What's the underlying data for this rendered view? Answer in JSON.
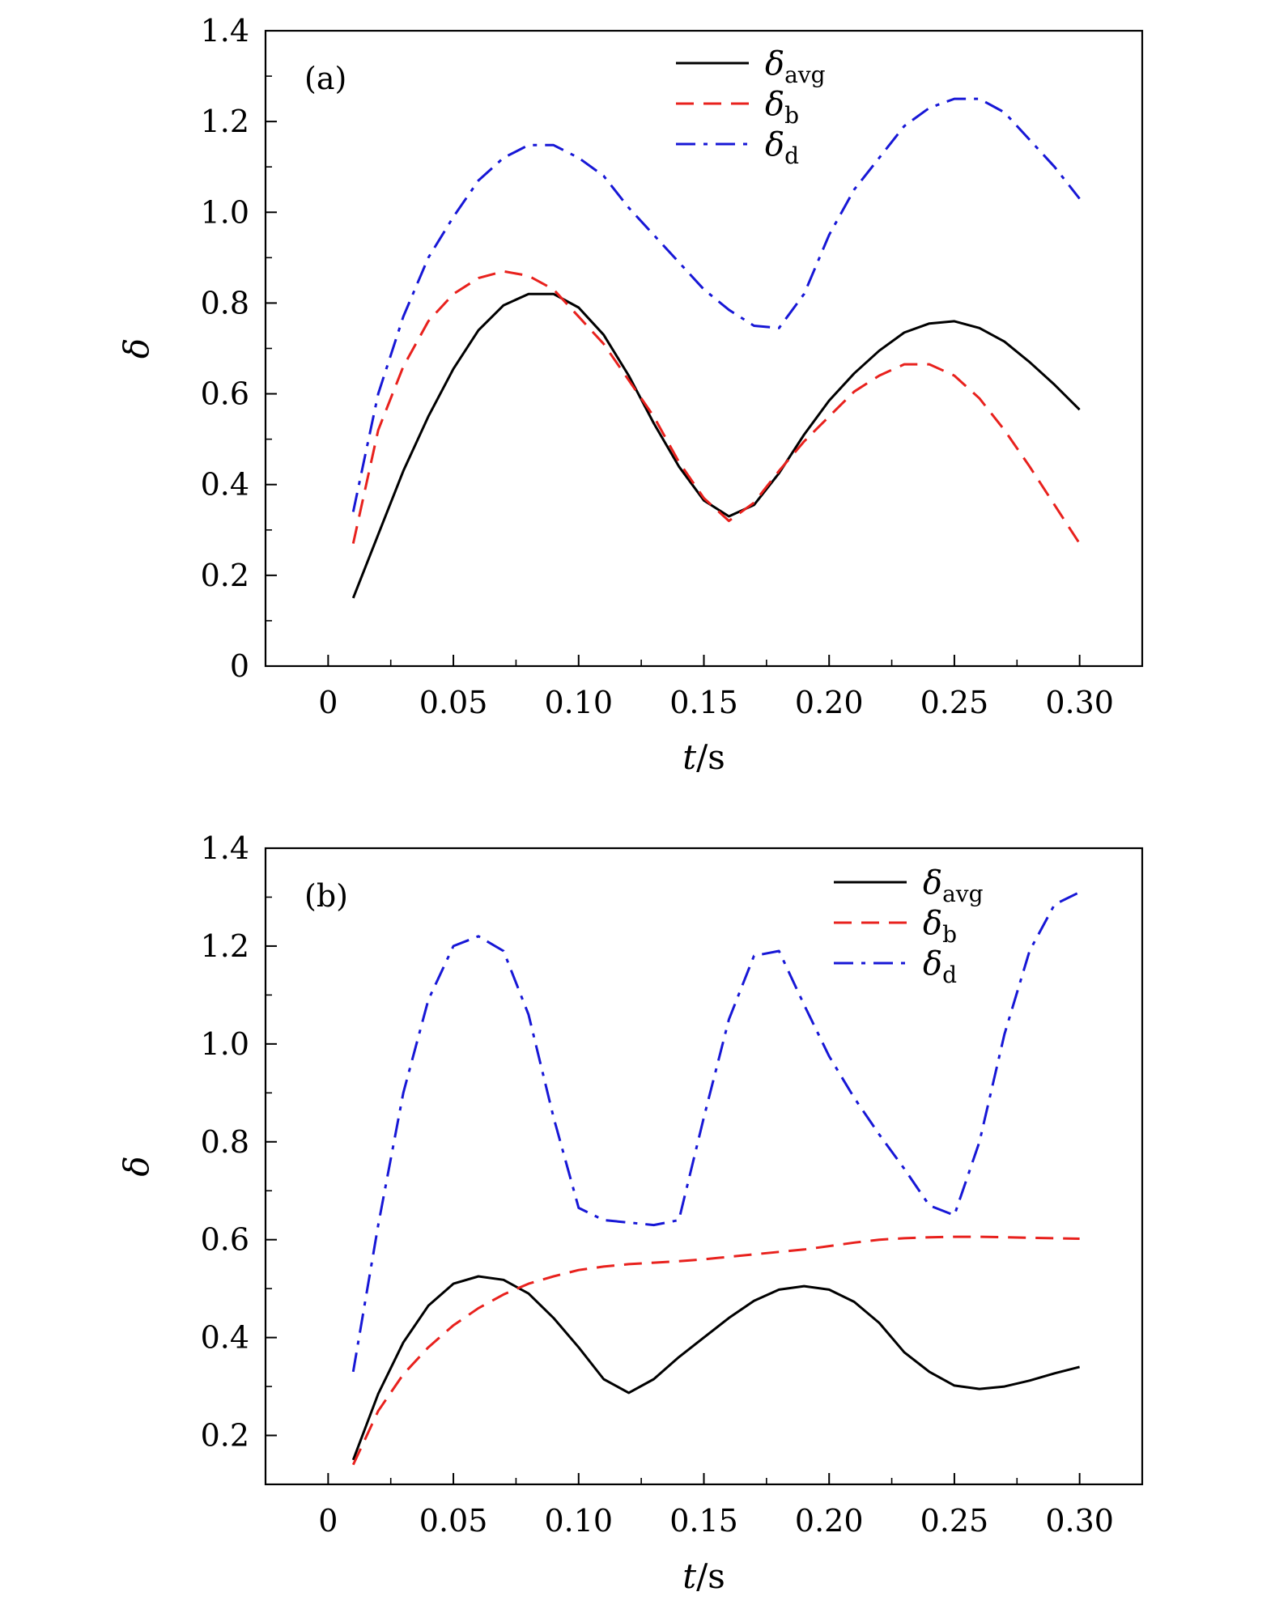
{
  "chart_data": [
    {
      "type": "line",
      "panel_label": "(a)",
      "xlabel": "t/s",
      "xlabel_italic": "t",
      "xlabel_rest": "/s",
      "ylabel": "δ",
      "xlim": [
        -0.025,
        0.325
      ],
      "ylim": [
        0,
        1.4
      ],
      "x_ticks": [
        0,
        0.05,
        0.1,
        0.15,
        0.2,
        0.25,
        0.3
      ],
      "x_tick_labels": [
        "0",
        "0.05",
        "0.10",
        "0.15",
        "0.20",
        "0.25",
        "0.30"
      ],
      "y_ticks": [
        0,
        0.2,
        0.4,
        0.6,
        0.8,
        1.0,
        1.2,
        1.4
      ],
      "y_tick_labels": [
        "0",
        "0.2",
        "0.4",
        "0.6",
        "0.8",
        "1.0",
        "1.2",
        "1.4"
      ],
      "legend_position": "top-center",
      "series": [
        {
          "name": "δavg",
          "name_main": "δ",
          "name_sub": "avg",
          "color": "#000000",
          "style": "solid",
          "x": [
            0.01,
            0.02,
            0.03,
            0.04,
            0.05,
            0.06,
            0.07,
            0.08,
            0.09,
            0.1,
            0.11,
            0.12,
            0.13,
            0.14,
            0.15,
            0.16,
            0.17,
            0.18,
            0.19,
            0.2,
            0.21,
            0.22,
            0.23,
            0.24,
            0.25,
            0.26,
            0.27,
            0.28,
            0.29,
            0.3
          ],
          "y": [
            0.15,
            0.29,
            0.43,
            0.55,
            0.655,
            0.74,
            0.795,
            0.82,
            0.82,
            0.79,
            0.73,
            0.64,
            0.535,
            0.44,
            0.365,
            0.33,
            0.355,
            0.425,
            0.51,
            0.585,
            0.645,
            0.695,
            0.735,
            0.755,
            0.76,
            0.745,
            0.715,
            0.67,
            0.62,
            0.565
          ]
        },
        {
          "name": "δb",
          "name_main": "δ",
          "name_sub": "b",
          "color": "#e8211d",
          "style": "dashed",
          "x": [
            0.01,
            0.02,
            0.03,
            0.04,
            0.05,
            0.06,
            0.07,
            0.08,
            0.09,
            0.1,
            0.11,
            0.12,
            0.13,
            0.14,
            0.15,
            0.16,
            0.17,
            0.18,
            0.19,
            0.2,
            0.21,
            0.22,
            0.23,
            0.24,
            0.25,
            0.26,
            0.27,
            0.28,
            0.29,
            0.3
          ],
          "y": [
            0.27,
            0.52,
            0.66,
            0.76,
            0.82,
            0.855,
            0.87,
            0.86,
            0.83,
            0.77,
            0.71,
            0.63,
            0.55,
            0.45,
            0.37,
            0.32,
            0.36,
            0.43,
            0.495,
            0.55,
            0.605,
            0.64,
            0.665,
            0.665,
            0.64,
            0.59,
            0.52,
            0.44,
            0.355,
            0.27
          ]
        },
        {
          "name": "δd",
          "name_main": "δ",
          "name_sub": "d",
          "color": "#1717d6",
          "style": "dashdot",
          "x": [
            0.01,
            0.02,
            0.03,
            0.04,
            0.05,
            0.06,
            0.07,
            0.08,
            0.09,
            0.1,
            0.11,
            0.12,
            0.13,
            0.14,
            0.15,
            0.16,
            0.17,
            0.18,
            0.19,
            0.2,
            0.21,
            0.22,
            0.23,
            0.24,
            0.25,
            0.26,
            0.27,
            0.28,
            0.29,
            0.3
          ],
          "y": [
            0.34,
            0.6,
            0.77,
            0.9,
            0.99,
            1.07,
            1.12,
            1.148,
            1.148,
            1.12,
            1.08,
            1.01,
            0.95,
            0.89,
            0.83,
            0.785,
            0.75,
            0.745,
            0.82,
            0.95,
            1.05,
            1.12,
            1.19,
            1.23,
            1.25,
            1.25,
            1.22,
            1.16,
            1.1,
            1.03
          ]
        }
      ]
    },
    {
      "type": "line",
      "panel_label": "(b)",
      "xlabel": "t/s",
      "xlabel_italic": "t",
      "xlabel_rest": "/s",
      "ylabel": "δ",
      "xlim": [
        -0.025,
        0.325
      ],
      "ylim": [
        0.1,
        1.4
      ],
      "x_ticks": [
        0,
        0.05,
        0.1,
        0.15,
        0.2,
        0.25,
        0.3
      ],
      "x_tick_labels": [
        "0",
        "0.05",
        "0.10",
        "0.15",
        "0.20",
        "0.25",
        "0.30"
      ],
      "y_ticks": [
        0.2,
        0.4,
        0.6,
        0.8,
        1.0,
        1.2,
        1.4
      ],
      "y_tick_labels": [
        "0.2",
        "0.4",
        "0.6",
        "0.8",
        "1.0",
        "1.2",
        "1.4"
      ],
      "legend_position": "top-right",
      "series": [
        {
          "name": "δavg",
          "name_main": "δ",
          "name_sub": "avg",
          "color": "#000000",
          "style": "solid",
          "x": [
            0.01,
            0.02,
            0.03,
            0.04,
            0.05,
            0.06,
            0.07,
            0.08,
            0.09,
            0.1,
            0.11,
            0.12,
            0.13,
            0.14,
            0.15,
            0.16,
            0.17,
            0.18,
            0.19,
            0.2,
            0.21,
            0.22,
            0.23,
            0.24,
            0.25,
            0.26,
            0.27,
            0.28,
            0.29,
            0.3
          ],
          "y": [
            0.15,
            0.285,
            0.39,
            0.465,
            0.51,
            0.525,
            0.518,
            0.49,
            0.44,
            0.38,
            0.315,
            0.287,
            0.315,
            0.36,
            0.4,
            0.44,
            0.475,
            0.498,
            0.505,
            0.498,
            0.473,
            0.43,
            0.37,
            0.33,
            0.302,
            0.295,
            0.3,
            0.312,
            0.327,
            0.34
          ]
        },
        {
          "name": "δb",
          "name_main": "δ",
          "name_sub": "b",
          "color": "#e8211d",
          "style": "dashed",
          "x": [
            0.01,
            0.02,
            0.03,
            0.04,
            0.05,
            0.06,
            0.07,
            0.08,
            0.09,
            0.1,
            0.11,
            0.12,
            0.13,
            0.14,
            0.15,
            0.16,
            0.17,
            0.18,
            0.19,
            0.2,
            0.21,
            0.22,
            0.23,
            0.24,
            0.25,
            0.26,
            0.27,
            0.28,
            0.29,
            0.3
          ],
          "y": [
            0.14,
            0.25,
            0.325,
            0.38,
            0.425,
            0.46,
            0.488,
            0.51,
            0.525,
            0.538,
            0.545,
            0.55,
            0.553,
            0.556,
            0.56,
            0.565,
            0.57,
            0.575,
            0.58,
            0.587,
            0.594,
            0.6,
            0.603,
            0.605,
            0.606,
            0.606,
            0.605,
            0.604,
            0.603,
            0.602
          ]
        },
        {
          "name": "δd",
          "name_main": "δ",
          "name_sub": "d",
          "color": "#1717d6",
          "style": "dashdot",
          "x": [
            0.01,
            0.02,
            0.03,
            0.04,
            0.05,
            0.06,
            0.07,
            0.08,
            0.09,
            0.1,
            0.11,
            0.12,
            0.13,
            0.14,
            0.15,
            0.16,
            0.17,
            0.18,
            0.19,
            0.2,
            0.21,
            0.22,
            0.23,
            0.24,
            0.25,
            0.26,
            0.27,
            0.28,
            0.29,
            0.3
          ],
          "y": [
            0.33,
            0.63,
            0.9,
            1.09,
            1.2,
            1.22,
            1.19,
            1.06,
            0.85,
            0.665,
            0.64,
            0.635,
            0.63,
            0.64,
            0.85,
            1.05,
            1.18,
            1.19,
            1.08,
            0.975,
            0.89,
            0.815,
            0.745,
            0.67,
            0.65,
            0.8,
            1.02,
            1.19,
            1.285,
            1.31
          ]
        }
      ]
    }
  ]
}
